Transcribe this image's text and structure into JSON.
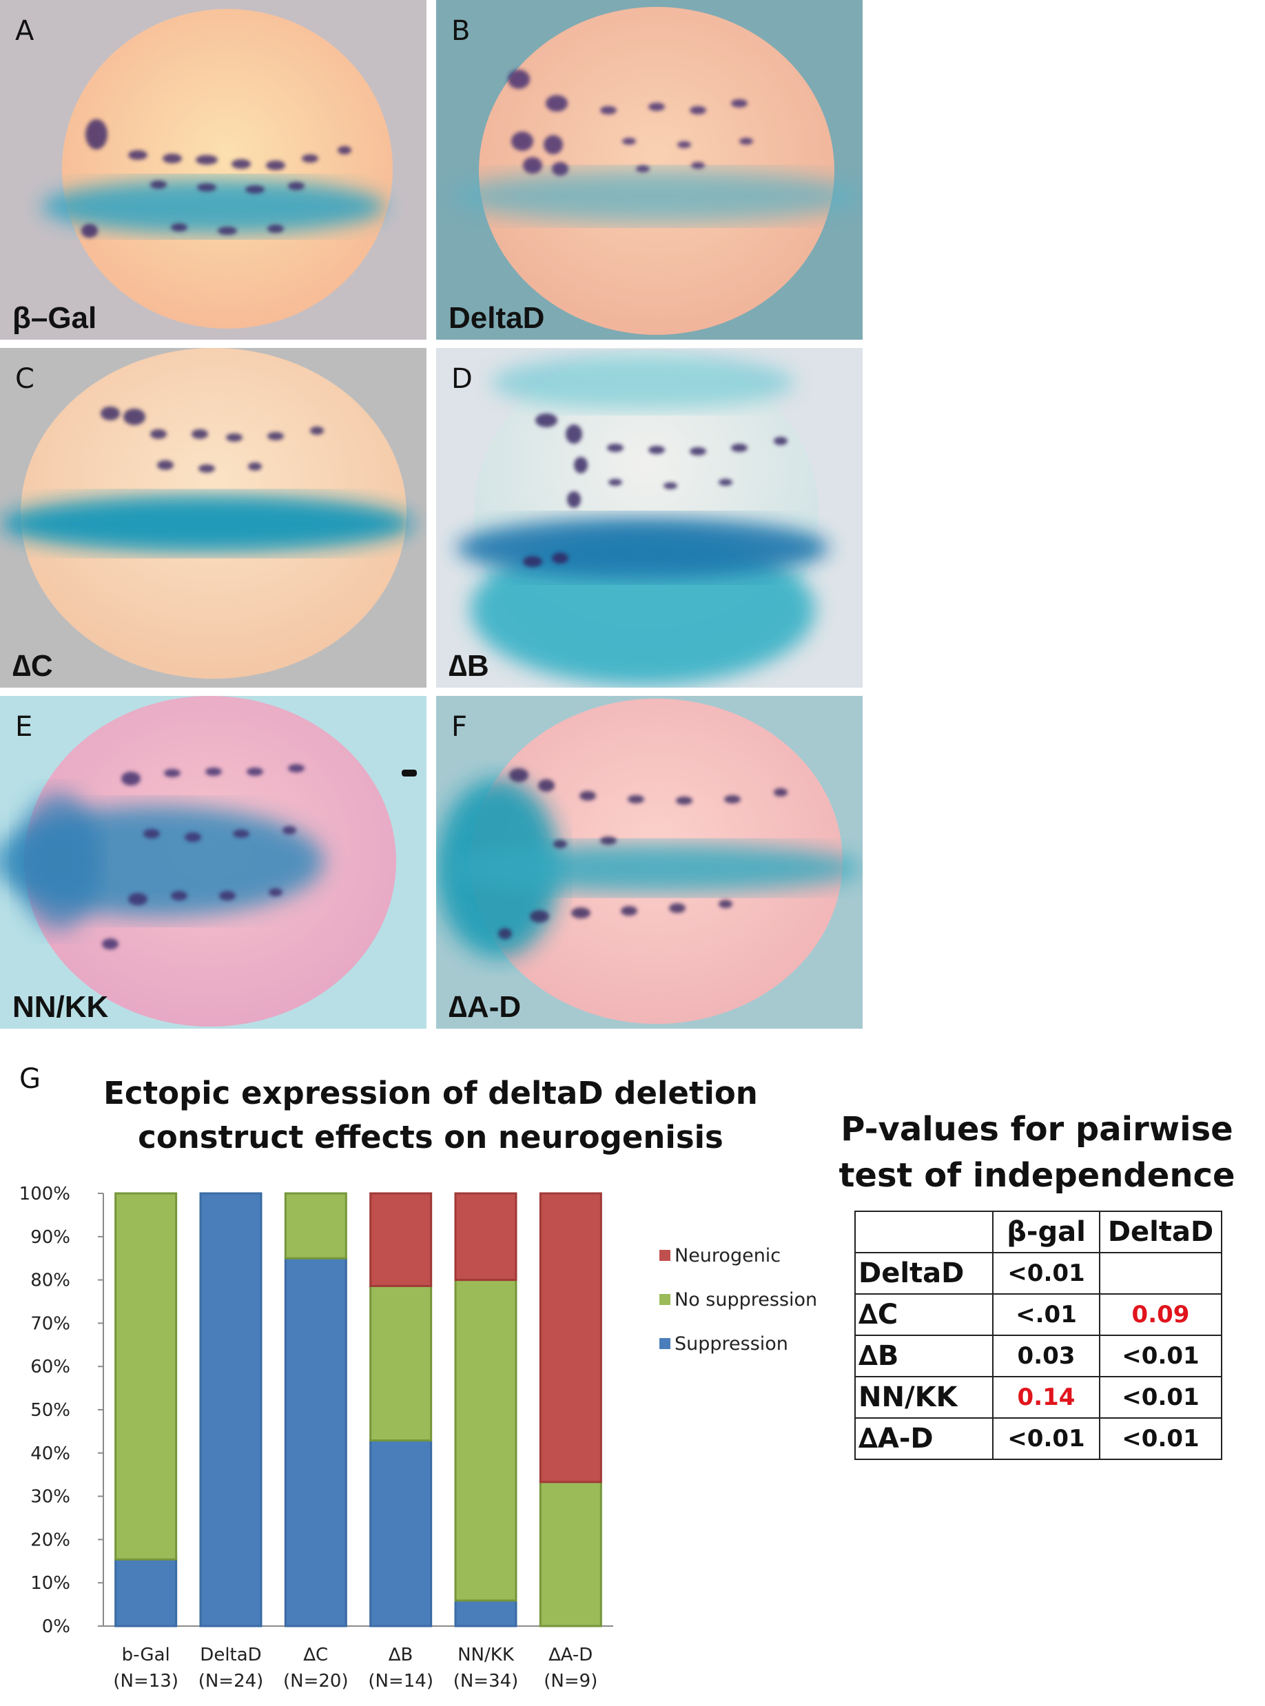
{
  "panels": [
    {
      "letter": "A",
      "condition": "β–Gal"
    },
    {
      "letter": "B",
      "condition": "DeltaD"
    },
    {
      "letter": "C",
      "condition": "∆C"
    },
    {
      "letter": "D",
      "condition": "∆B"
    },
    {
      "letter": "E",
      "condition": "NN/KK"
    },
    {
      "letter": "F",
      "condition": "∆A-D"
    }
  ],
  "figure_g": {
    "letter": "G"
  },
  "chart_data": {
    "type": "bar",
    "stacked": true,
    "title": [
      "Ectopic expression of deltaD deletion",
      "construct effects on neurogenisis"
    ],
    "categories": [
      {
        "name": "b-Gal",
        "n": "(N=13)"
      },
      {
        "name": "DeltaD",
        "n": "(N=24)"
      },
      {
        "name": "∆C",
        "n": "(N=20)"
      },
      {
        "name": "∆B",
        "n": "(N=14)"
      },
      {
        "name": "NN/KK",
        "n": "(N=34)"
      },
      {
        "name": "∆A-D",
        "n": "(N=9)"
      }
    ],
    "series": [
      {
        "name": "Suppression",
        "color": "#4a7ebb",
        "values": [
          15.4,
          100,
          85,
          42.9,
          5.9,
          0
        ]
      },
      {
        "name": "No suppression",
        "color": "#9bbb59",
        "values": [
          84.6,
          0,
          15,
          35.7,
          74.1,
          33.3
        ]
      },
      {
        "name": "Neurogenic",
        "color": "#c0504d",
        "values": [
          0,
          0,
          0,
          21.4,
          20,
          66.7
        ]
      }
    ],
    "yticks": [
      "0%",
      "10%",
      "20%",
      "30%",
      "40%",
      "50%",
      "60%",
      "70%",
      "80%",
      "90%",
      "100%"
    ],
    "ylim": [
      0,
      100
    ],
    "legend_order": [
      "Neurogenic",
      "No suppression",
      "Suppression"
    ],
    "legend_position": "right"
  },
  "pvalue_table": {
    "title": [
      "P-values for pairwise",
      "test of independence"
    ],
    "columns": [
      "",
      "β-gal",
      "DeltaD"
    ],
    "rows": [
      {
        "label": "DeltaD",
        "bgal": "<0.01",
        "deltad": ""
      },
      {
        "label": "∆C",
        "bgal": "<.01",
        "deltad": "0.09"
      },
      {
        "label": "∆B",
        "bgal": "0.03",
        "deltad": "<0.01"
      },
      {
        "label": "NN/KK",
        "bgal": "0.14",
        "deltad": "<0.01"
      },
      {
        "label": "∆A-D",
        "bgal": "<0.01",
        "deltad": "<0.01"
      }
    ]
  }
}
